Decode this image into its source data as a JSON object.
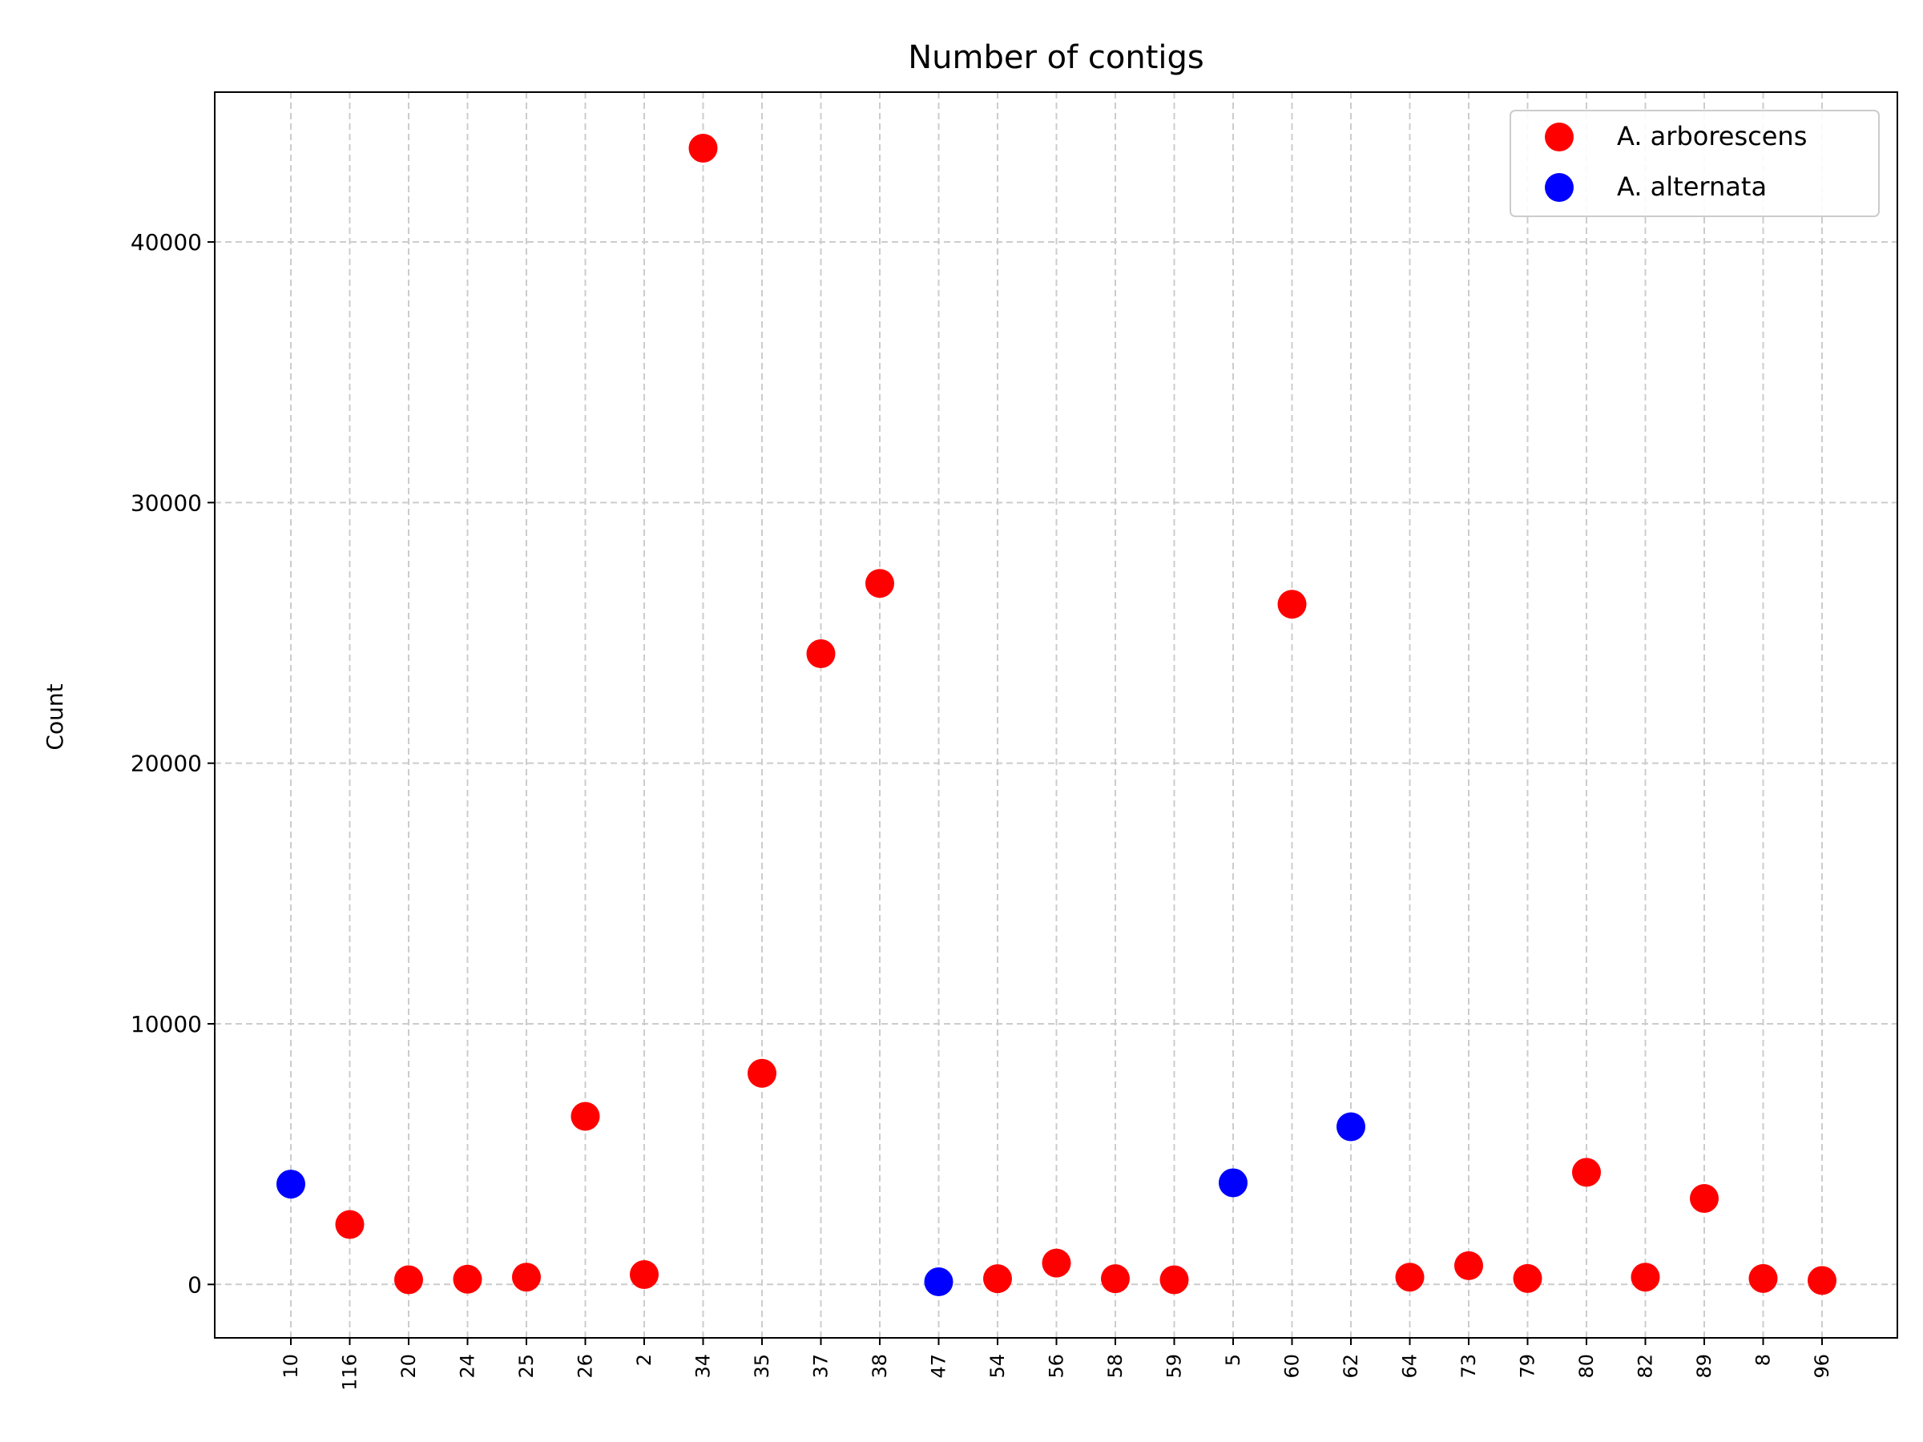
{
  "chart_data": {
    "type": "scatter",
    "title": "Number of contigs",
    "xlabel": "",
    "ylabel": "Count",
    "categories": [
      "10",
      "116",
      "20",
      "24",
      "25",
      "26",
      "2",
      "34",
      "35",
      "37",
      "38",
      "47",
      "54",
      "56",
      "58",
      "59",
      "5",
      "60",
      "62",
      "64",
      "73",
      "79",
      "80",
      "82",
      "89",
      "8",
      "96"
    ],
    "series": [
      {
        "name": "A. arborescens",
        "color": "#ff0000",
        "points": [
          {
            "x": "116",
            "y": 2300
          },
          {
            "x": "20",
            "y": 180
          },
          {
            "x": "24",
            "y": 200
          },
          {
            "x": "25",
            "y": 280
          },
          {
            "x": "26",
            "y": 6450
          },
          {
            "x": "2",
            "y": 380
          },
          {
            "x": "34",
            "y": 43600
          },
          {
            "x": "35",
            "y": 8100
          },
          {
            "x": "37",
            "y": 24200
          },
          {
            "x": "38",
            "y": 26900
          },
          {
            "x": "54",
            "y": 220
          },
          {
            "x": "56",
            "y": 820
          },
          {
            "x": "58",
            "y": 220
          },
          {
            "x": "59",
            "y": 180
          },
          {
            "x": "60",
            "y": 26100
          },
          {
            "x": "64",
            "y": 280
          },
          {
            "x": "73",
            "y": 720
          },
          {
            "x": "79",
            "y": 230
          },
          {
            "x": "80",
            "y": 4300
          },
          {
            "x": "82",
            "y": 280
          },
          {
            "x": "89",
            "y": 3300
          },
          {
            "x": "8",
            "y": 230
          },
          {
            "x": "96",
            "y": 150
          }
        ]
      },
      {
        "name": "A. alternata",
        "color": "#0000ff",
        "points": [
          {
            "x": "10",
            "y": 3850
          },
          {
            "x": "47",
            "y": 100
          },
          {
            "x": "5",
            "y": 3900
          },
          {
            "x": "62",
            "y": 6050
          }
        ]
      }
    ],
    "yticks": [
      0,
      10000,
      20000,
      30000,
      40000
    ],
    "ylim": [
      -2050,
      45750
    ],
    "grid": true,
    "legend_position": "top-right"
  }
}
